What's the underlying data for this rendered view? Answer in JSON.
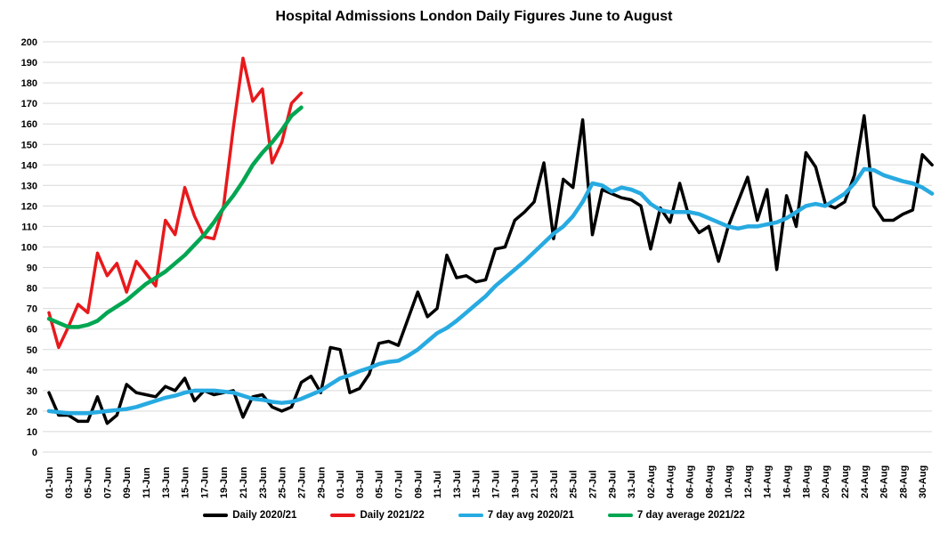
{
  "title": "Hospital Admissions London Daily Figures June to August",
  "chart_data": {
    "type": "line",
    "title": "Hospital Admissions London Daily Figures June to August",
    "ylim": [
      0,
      200
    ],
    "y_tick_interval": 10,
    "grid": "horizontal",
    "grid_color": "#d9d9d9",
    "legend_position": "bottom",
    "x_tick_step": 2,
    "x_tick_labels": [
      "01-Jun",
      "03-Jun",
      "05-Jun",
      "07-Jun",
      "09-Jun",
      "11-Jun",
      "13-Jun",
      "15-Jun",
      "17-Jun",
      "19-Jun",
      "21-Jun",
      "23-Jun",
      "25-Jun",
      "27-Jun",
      "29-Jun",
      "01-Jul",
      "03-Jul",
      "05-Jul",
      "07-Jul",
      "09-Jul",
      "11-Jul",
      "13-Jul",
      "15-Jul",
      "17-Jul",
      "19-Jul",
      "21-Jul",
      "23-Jul",
      "25-Jul",
      "27-Jul",
      "29-Jul",
      "31-Jul",
      "02-Aug",
      "04-Aug",
      "06-Aug",
      "08-Aug",
      "10-Aug",
      "12-Aug",
      "14-Aug",
      "16-Aug",
      "18-Aug",
      "20-Aug",
      "22-Aug",
      "24-Aug",
      "26-Aug",
      "28-Aug",
      "30-Aug"
    ],
    "series": [
      {
        "name": "Daily 2020/21",
        "color": "#000000",
        "width": 3.5,
        "values": [
          29,
          18,
          18,
          15,
          15,
          27,
          14,
          18,
          33,
          29,
          28,
          27,
          32,
          30,
          36,
          25,
          30,
          28,
          29,
          30,
          17,
          27,
          28,
          22,
          20,
          22,
          34,
          37,
          29,
          51,
          50,
          29,
          31,
          38,
          53,
          54,
          52,
          65,
          78,
          66,
          70,
          96,
          85,
          86,
          83,
          84,
          99,
          100,
          113,
          117,
          122,
          141,
          104,
          133,
          129,
          162,
          106,
          128,
          126,
          124,
          123,
          120,
          99,
          119,
          112,
          131,
          114,
          107,
          110,
          93,
          110,
          122,
          134,
          113,
          128,
          89,
          125,
          110,
          146,
          139,
          121,
          119,
          122,
          135,
          164,
          120,
          113,
          113,
          116,
          118,
          145,
          140
        ]
      },
      {
        "name": "Daily 2021/22",
        "color": "#e8191c",
        "width": 3.5,
        "values": [
          68,
          51,
          61,
          72,
          68,
          97,
          86,
          92,
          78,
          93,
          87,
          81,
          113,
          106,
          129,
          115,
          105,
          104,
          120,
          158,
          192,
          171,
          177,
          141,
          151,
          170,
          175
        ]
      },
      {
        "name": "7 day avg 2020/21",
        "color": "#27aae1",
        "width": 4.5,
        "values": [
          20,
          19.5,
          19,
          19,
          19,
          19.5,
          20,
          20.5,
          21,
          22,
          23.5,
          25,
          26.5,
          27.5,
          29,
          30,
          30,
          30,
          29.5,
          29,
          27.5,
          26,
          25.5,
          24.5,
          24,
          24.5,
          26,
          28,
          30,
          33,
          36,
          37.5,
          39.5,
          41,
          43,
          44,
          44.5,
          47,
          50,
          54,
          58,
          60.5,
          64,
          68,
          72,
          76,
          81,
          85,
          89,
          93,
          97.5,
          102,
          106.5,
          110,
          115,
          122,
          131,
          130,
          127,
          129,
          128,
          126,
          121,
          118,
          117,
          117,
          117,
          116,
          114,
          112,
          110,
          109,
          110,
          110,
          111,
          112,
          114,
          117,
          120,
          121,
          120,
          123,
          126,
          131,
          138,
          137.5,
          135,
          133.5,
          132,
          131,
          129,
          126
        ]
      },
      {
        "name": "7 day average 2021/22",
        "color": "#00a651",
        "width": 4.5,
        "values": [
          65,
          63,
          61,
          61,
          62,
          64,
          68,
          71,
          74,
          78,
          82,
          85,
          88,
          92,
          96,
          101,
          106,
          112,
          119,
          125,
          132,
          140,
          146,
          151,
          157,
          164,
          168
        ]
      }
    ]
  },
  "legend": {
    "items": [
      "Daily 2020/21",
      "Daily 2021/22",
      "7 day avg 2020/21",
      "7 day average 2021/22"
    ]
  }
}
